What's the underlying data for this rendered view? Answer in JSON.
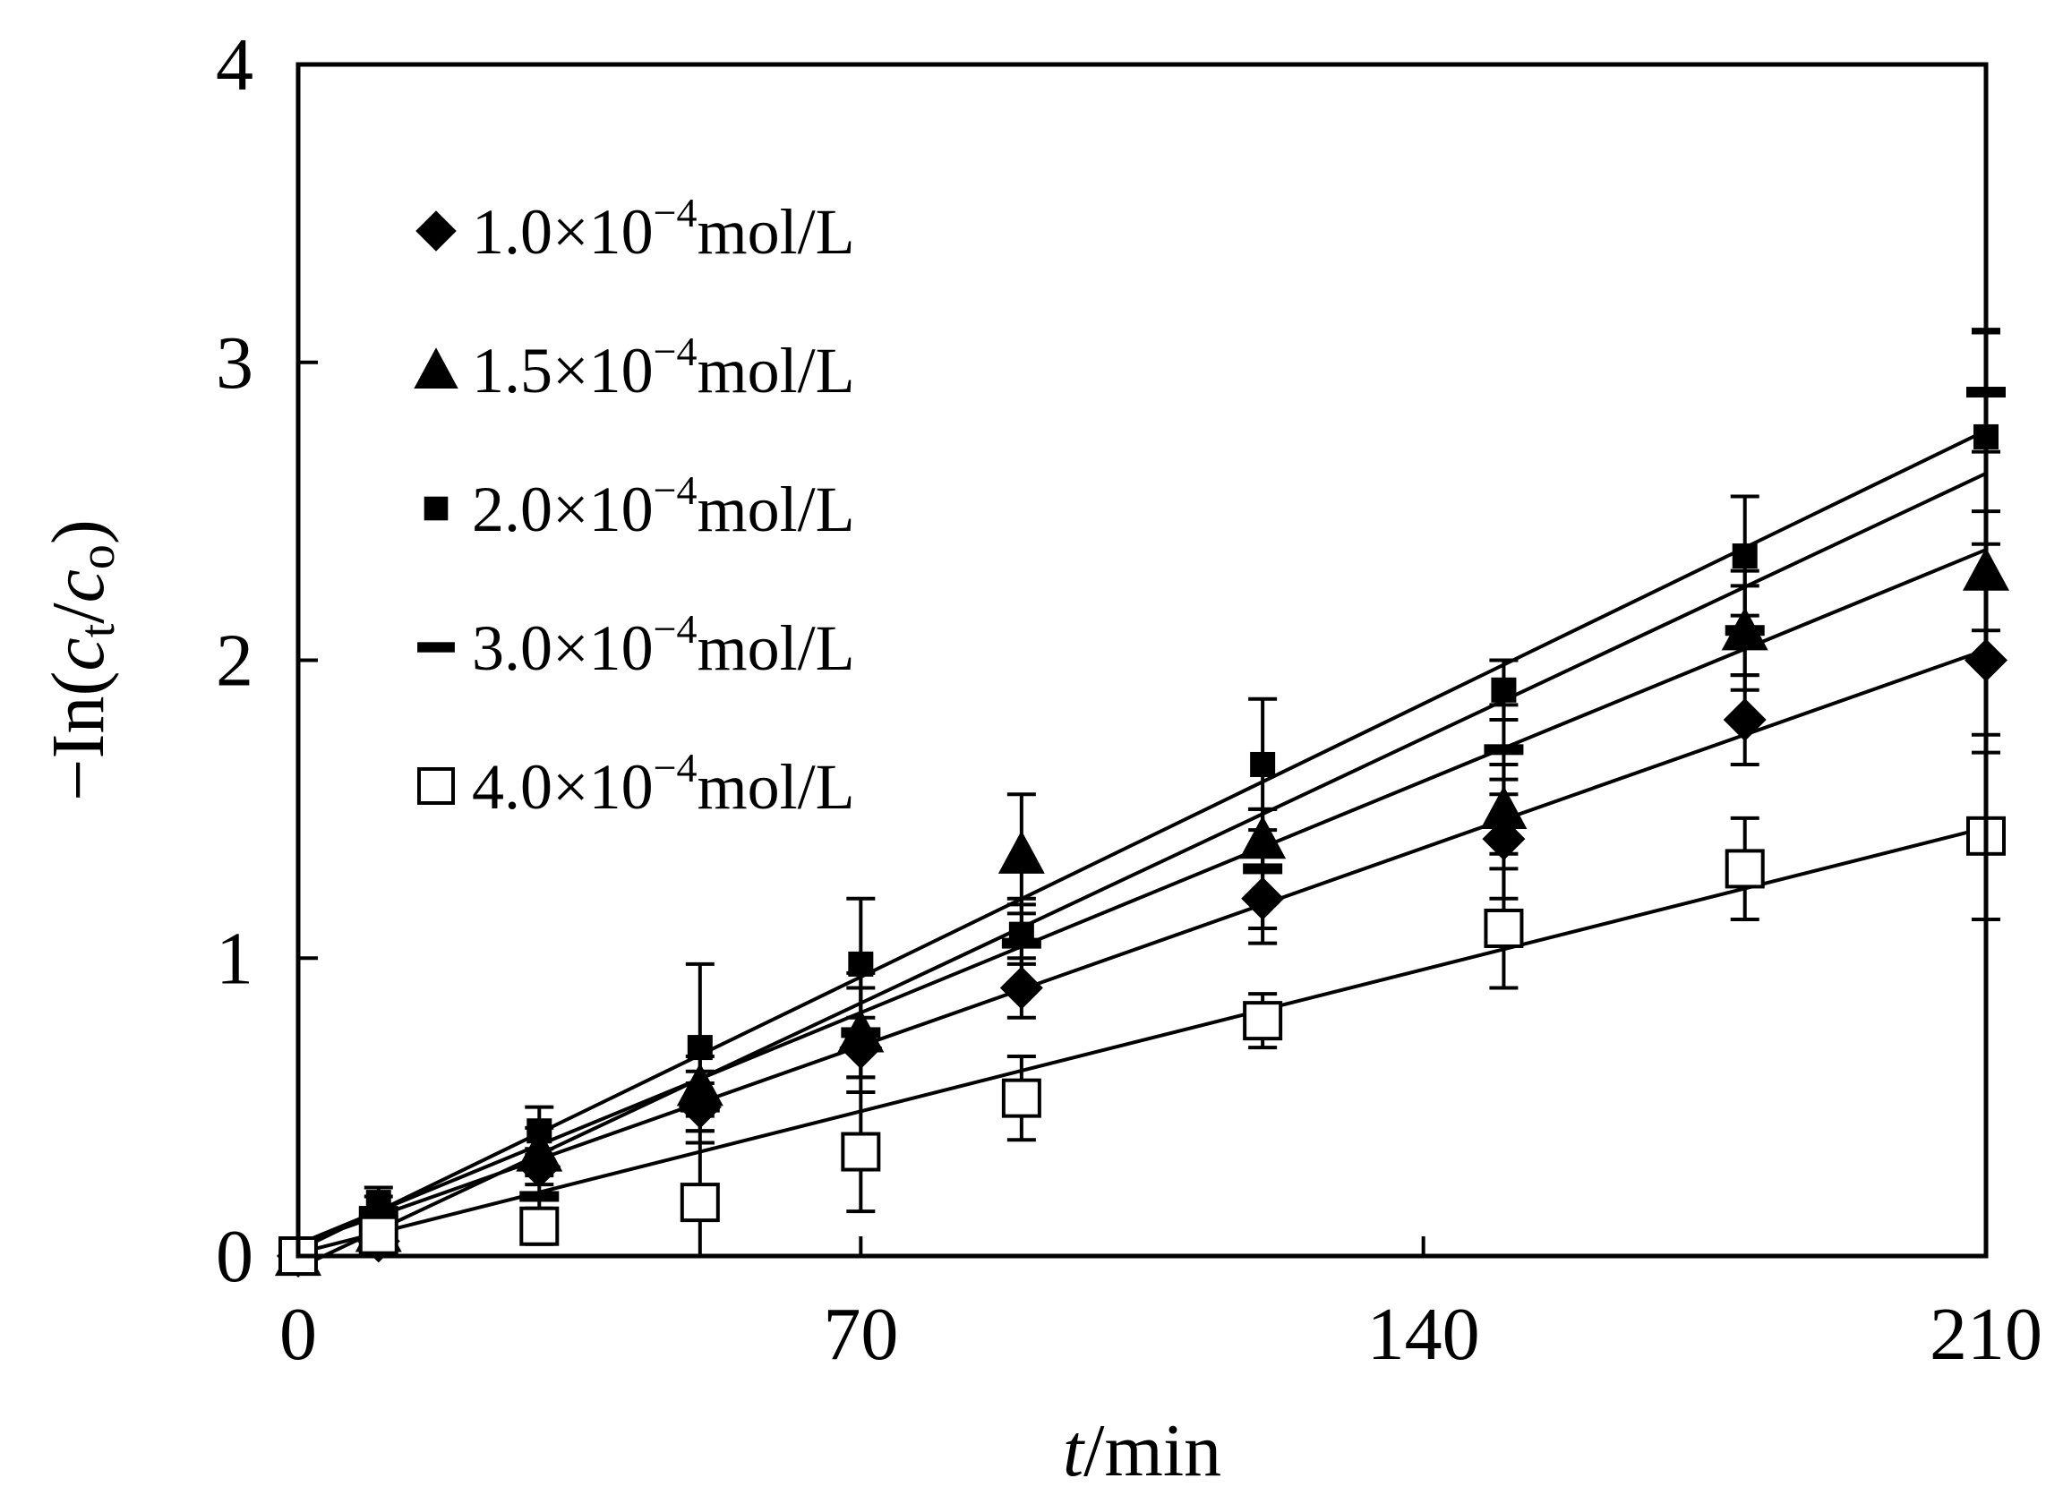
{
  "chart_data": {
    "type": "scatter",
    "title": "",
    "xlabel": {
      "var": "t",
      "unit": "/min"
    },
    "ylabel": {
      "prefix": "−In(",
      "c1": "c",
      "sub1": "t",
      "slash": "/",
      "c2": "c",
      "sub2": "o",
      "suffix": ")"
    },
    "xlim": [
      0,
      210
    ],
    "ylim": [
      0,
      4
    ],
    "xticks": [
      0,
      70,
      140,
      210
    ],
    "yticks": [
      0,
      1,
      2,
      3,
      4
    ],
    "xtick_labels": [
      "0",
      "70",
      "140",
      "210"
    ],
    "ytick_labels": [
      "0",
      "1",
      "2",
      "3",
      "4"
    ],
    "grid": false,
    "legend_position": "top-left",
    "series": [
      {
        "name": "1.0×10⁻⁴mol/L",
        "legend": {
          "mantissa": "1.0×10",
          "exp": "−4",
          "unit": "mol/L"
        },
        "marker": "diamond",
        "x": [
          0,
          10,
          30,
          50,
          70,
          90,
          120,
          150,
          180,
          210
        ],
        "y": [
          0,
          0.05,
          0.3,
          0.5,
          0.7,
          0.9,
          1.2,
          1.4,
          1.8,
          2.0
        ],
        "err": [
          0,
          0.05,
          0.06,
          0.08,
          0.1,
          0.1,
          0.15,
          0.2,
          0.15,
          0.25
        ],
        "fit": {
          "slope": 0.0095,
          "intercept": 0.04
        }
      },
      {
        "name": "1.5×10⁻⁴mol/L",
        "legend": {
          "mantissa": "1.5×10",
          "exp": "−4",
          "unit": "mol/L"
        },
        "marker": "triangle",
        "x": [
          0,
          10,
          30,
          50,
          70,
          90,
          120,
          150,
          180,
          210
        ],
        "y": [
          0,
          0.08,
          0.35,
          0.57,
          0.75,
          1.35,
          1.4,
          1.5,
          2.1,
          2.3
        ],
        "err": [
          0,
          0.05,
          0.08,
          0.1,
          0.15,
          0.2,
          0.1,
          0.15,
          0.15,
          0.2
        ],
        "fit": {
          "slope": 0.0111,
          "intercept": 0.04
        }
      },
      {
        "name": "2.0×10⁻⁴mol/L",
        "legend": {
          "mantissa": "2.0×10",
          "exp": "−4",
          "unit": "mol/L"
        },
        "marker": "square-filled",
        "x": [
          0,
          10,
          30,
          50,
          70,
          90,
          120,
          150,
          180,
          210
        ],
        "y": [
          0,
          0.18,
          0.42,
          0.7,
          0.98,
          1.08,
          1.65,
          1.9,
          2.35,
          2.75
        ],
        "err": [
          0,
          0.05,
          0.08,
          0.28,
          0.22,
          0.1,
          0.22,
          0.1,
          0.2,
          0.36
        ],
        "fit": {
          "slope": 0.0131,
          "intercept": 0.02
        }
      },
      {
        "name": "3.0×10⁻⁴mol/L",
        "legend": {
          "mantissa": "3.0×10",
          "exp": "−4",
          "unit": "mol/L"
        },
        "marker": "dash",
        "x": [
          0,
          10,
          30,
          50,
          70,
          90,
          120,
          150,
          180,
          210
        ],
        "y": [
          0,
          0.15,
          0.2,
          0.5,
          0.75,
          1.05,
          1.3,
          1.7,
          2.1,
          2.9
        ],
        "err": [
          0,
          0.05,
          0.1,
          0.12,
          0.2,
          0.15,
          0.2,
          0.15,
          0.2,
          0.2
        ],
        "fit": {
          "slope": 0.0127,
          "intercept": -0.04
        }
      },
      {
        "name": "4.0×10⁻⁴mol/L",
        "legend": {
          "mantissa": "4.0×10",
          "exp": "−4",
          "unit": "mol/L"
        },
        "marker": "square-open",
        "x": [
          0,
          10,
          30,
          50,
          70,
          90,
          120,
          150,
          180,
          210
        ],
        "y": [
          0,
          0.07,
          0.1,
          0.18,
          0.35,
          0.53,
          0.79,
          1.1,
          1.3,
          1.41
        ],
        "err": [
          0,
          0.05,
          0.06,
          0.2,
          0.2,
          0.14,
          0.09,
          0.2,
          0.17,
          0.28
        ],
        "fit": {
          "slope": 0.0068,
          "intercept": 0.01
        }
      }
    ]
  }
}
